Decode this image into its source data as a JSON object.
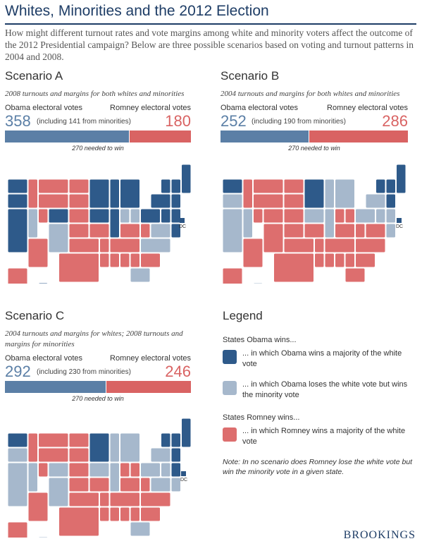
{
  "title": "Whites, Minorities and the 2012 Election",
  "intro": "How might different turnout rates and vote margins among white and minority voters affect the outcome of the 2012 Presidential campaign? Below are three possible scenarios based on voting and turnout patterns in 2004 and 2008.",
  "colors": {
    "obama_white": "#2e5a8a",
    "obama_minority": "#a6b8cc",
    "romney_white": "#dd6e6e",
    "bar_obama": "#5b7fa6",
    "bar_romney": "#d96363"
  },
  "chart_data": [
    {
      "type": "bar",
      "title": "Scenario A",
      "subtitle": "2008 turnouts and margins for both whites and minorities",
      "obama_label": "Obama electoral votes",
      "romney_label": "Romney electoral votes",
      "obama": 358,
      "obama_note": "(including 141 from minorities)",
      "obama_from_minorities": 141,
      "romney": 180,
      "threshold_label": "270 needed to win",
      "total": 538
    },
    {
      "type": "bar",
      "title": "Scenario B",
      "subtitle": "2004 turnouts and margins for both whites and minorities",
      "obama_label": "Obama electoral votes",
      "romney_label": "Romney electoral votes",
      "obama": 252,
      "obama_note": "(including 190 from minorities)",
      "obama_from_minorities": 190,
      "romney": 286,
      "threshold_label": "270 needed to win",
      "total": 538
    },
    {
      "type": "bar",
      "title": "Scenario C",
      "subtitle": "2004 turnouts and margins for whites; 2008 turnouts and margins for minorities",
      "obama_label": "Obama electoral votes",
      "romney_label": "Romney electoral votes",
      "obama": 292,
      "obama_note": "(including 230 from minorities)",
      "obama_from_minorities": 230,
      "romney": 246,
      "threshold_label": "270 needed to win",
      "total": 538
    }
  ],
  "map_dc_label": "DC",
  "legend": {
    "title": "Legend",
    "obama_group": "States Obama wins...",
    "obama_white_text": "... in which Obama wins a majority of the white vote",
    "obama_minority_text": "... in which Obama loses the white vote but wins the minority vote",
    "romney_group": "States Romney wins...",
    "romney_white_text": "... in which Romney wins a majority of the white vote",
    "note": "Note: In no scenario does Romney lose the white vote but win the minority vote in a given state."
  },
  "brand": "BROOKINGS"
}
